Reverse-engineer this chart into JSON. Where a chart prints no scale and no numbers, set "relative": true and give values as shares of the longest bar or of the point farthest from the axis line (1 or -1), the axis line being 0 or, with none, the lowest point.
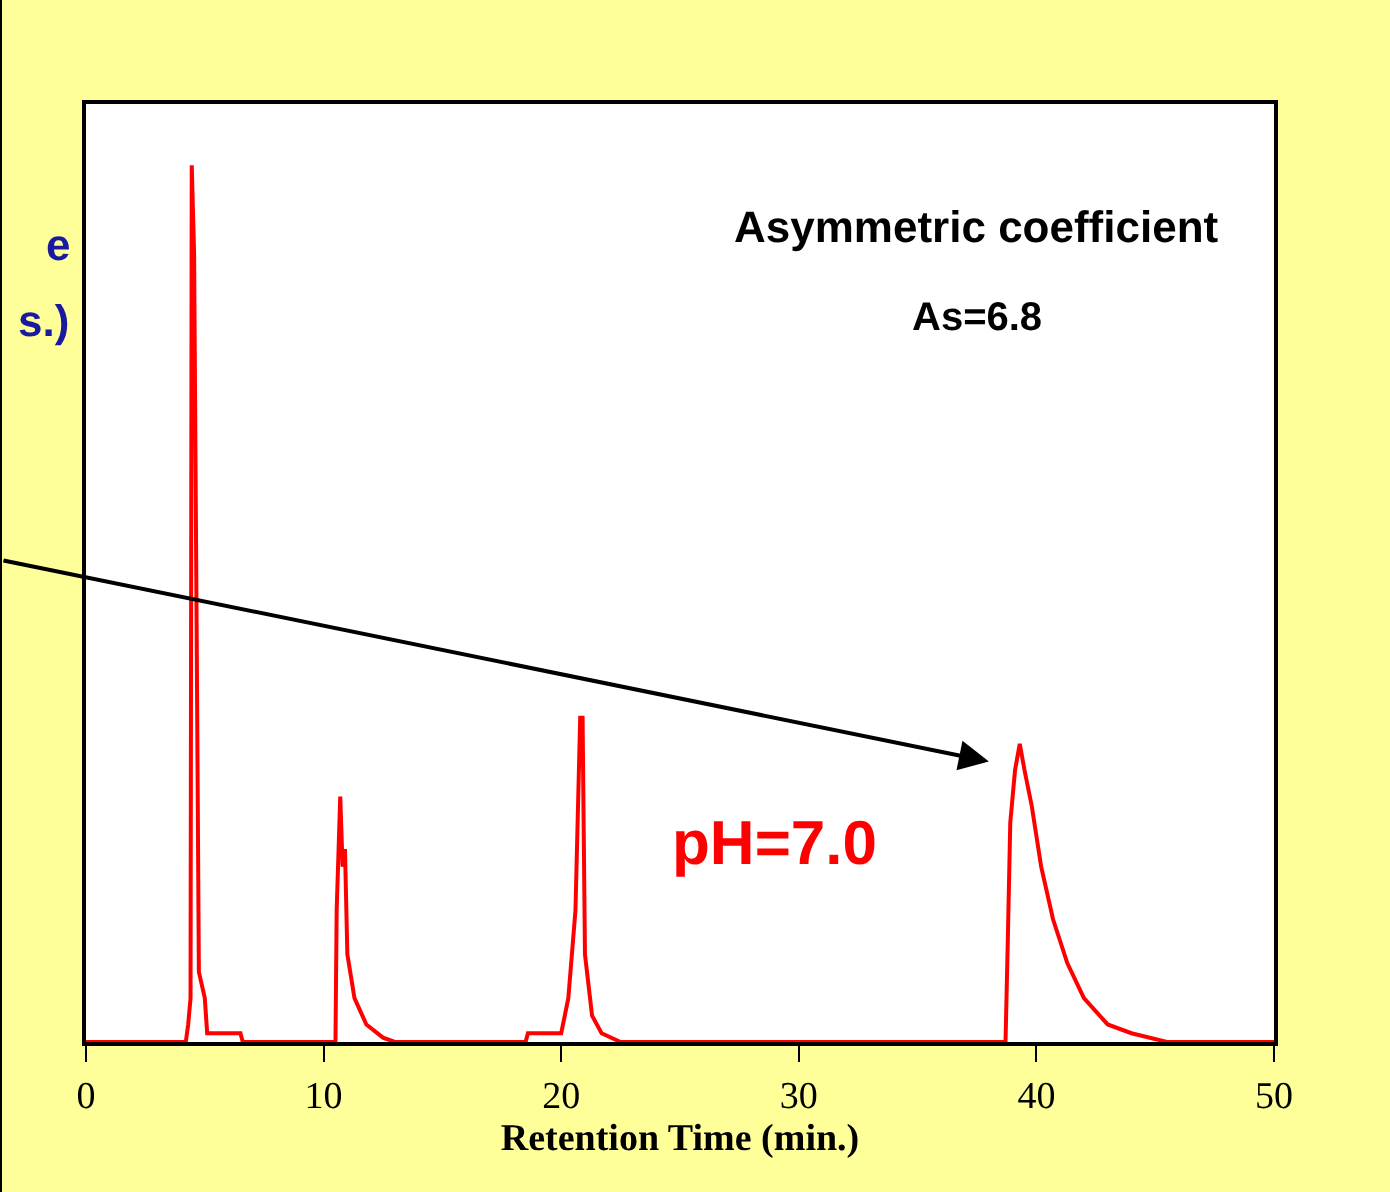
{
  "chart_data": {
    "type": "line",
    "relative": true,
    "color": "#ff0000",
    "xlabel": "Retention Time (min.)",
    "xlim": [
      0,
      50
    ],
    "xticks": [
      0,
      10,
      20,
      30,
      40,
      50
    ],
    "legend": false,
    "marker": "none",
    "line_style": "solid",
    "x": [
      0,
      4.2,
      4.3,
      4.4,
      4.45,
      4.55,
      4.65,
      4.75,
      5.0,
      5.1,
      6.5,
      6.6,
      10.5,
      10.55,
      10.7,
      10.8,
      10.9,
      11.0,
      11.3,
      11.8,
      12.5,
      13,
      18.5,
      18.6,
      20.0,
      20.3,
      20.6,
      20.8,
      20.9,
      21.0,
      21.3,
      21.7,
      22.5,
      38.7,
      38.8,
      38.9,
      39.1,
      39.3,
      39.5,
      39.8,
      40.2,
      40.7,
      41.3,
      42,
      43,
      44,
      45.5,
      50
    ],
    "values": [
      0,
      0,
      0.02,
      0.05,
      1.0,
      0.9,
      0.5,
      0.08,
      0.05,
      0.01,
      0.01,
      0,
      0,
      0.15,
      0.28,
      0.2,
      0.22,
      0.1,
      0.05,
      0.02,
      0.005,
      0,
      0,
      0.01,
      0.01,
      0.05,
      0.15,
      0.37,
      0.37,
      0.1,
      0.03,
      0.01,
      0,
      0,
      0.12,
      0.25,
      0.31,
      0.34,
      0.31,
      0.27,
      0.2,
      0.14,
      0.09,
      0.05,
      0.02,
      0.01,
      0,
      0
    ],
    "annotations": [
      "Asymmetric coefficient",
      "As=6.8",
      "pH=7.0",
      "e",
      "s.)"
    ]
  }
}
